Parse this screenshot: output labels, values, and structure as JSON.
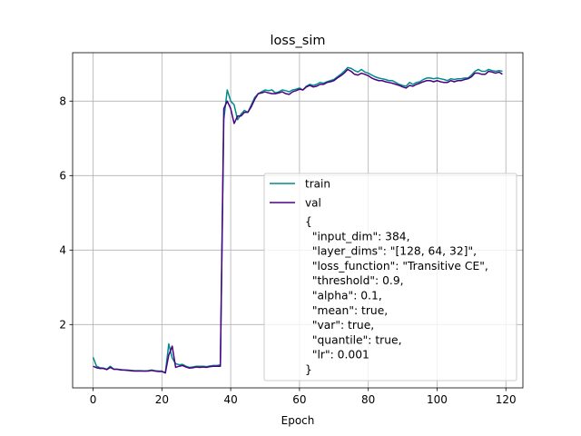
{
  "chart_data": {
    "type": "line",
    "title": "loss_sim",
    "xlabel": "Epoch",
    "ylabel": "",
    "xlim": [
      -5.95,
      124.95
    ],
    "ylim": [
      0.3,
      9.3
    ],
    "xticks": [
      0,
      20,
      40,
      60,
      80,
      100,
      120
    ],
    "yticks": [
      2,
      4,
      6,
      8
    ],
    "grid": true,
    "legend_position": "lower-right",
    "series": [
      {
        "name": "train",
        "color": "#008b8b",
        "x": [
          0,
          1,
          2,
          3,
          4,
          5,
          6,
          7,
          8,
          9,
          10,
          11,
          12,
          13,
          14,
          15,
          16,
          17,
          18,
          19,
          20,
          21,
          22,
          23,
          24,
          25,
          26,
          27,
          28,
          29,
          30,
          31,
          32,
          33,
          34,
          35,
          36,
          37,
          38,
          39,
          40,
          41,
          42,
          43,
          44,
          45,
          46,
          47,
          48,
          49,
          50,
          51,
          52,
          53,
          54,
          55,
          56,
          57,
          58,
          59,
          60,
          61,
          62,
          63,
          64,
          65,
          66,
          67,
          68,
          69,
          70,
          71,
          72,
          73,
          74,
          75,
          76,
          77,
          78,
          79,
          80,
          81,
          82,
          83,
          84,
          85,
          86,
          87,
          88,
          89,
          90,
          91,
          92,
          93,
          94,
          95,
          96,
          97,
          98,
          99,
          100,
          101,
          102,
          103,
          104,
          105,
          106,
          107,
          108,
          109,
          110,
          111,
          112,
          113,
          114,
          115,
          116,
          117,
          118,
          119
        ],
        "values": [
          1.12,
          0.88,
          0.84,
          0.83,
          0.8,
          0.88,
          0.8,
          0.8,
          0.79,
          0.78,
          0.78,
          0.77,
          0.76,
          0.76,
          0.76,
          0.75,
          0.76,
          0.78,
          0.76,
          0.75,
          0.75,
          0.7,
          1.48,
          1.1,
          0.95,
          0.92,
          0.93,
          0.88,
          0.85,
          0.86,
          0.88,
          0.88,
          0.88,
          0.87,
          0.89,
          0.9,
          0.9,
          0.92,
          7.5,
          8.3,
          8.0,
          7.9,
          7.5,
          7.65,
          7.75,
          7.7,
          7.9,
          8.1,
          8.2,
          8.25,
          8.3,
          8.28,
          8.3,
          8.22,
          8.25,
          8.3,
          8.28,
          8.25,
          8.3,
          8.32,
          8.35,
          8.3,
          8.4,
          8.45,
          8.42,
          8.45,
          8.5,
          8.48,
          8.52,
          8.55,
          8.58,
          8.65,
          8.72,
          8.8,
          8.9,
          8.88,
          8.82,
          8.78,
          8.85,
          8.78,
          8.75,
          8.7,
          8.65,
          8.62,
          8.6,
          8.58,
          8.55,
          8.55,
          8.5,
          8.45,
          8.42,
          8.4,
          8.5,
          8.45,
          8.5,
          8.52,
          8.58,
          8.62,
          8.62,
          8.6,
          8.62,
          8.6,
          8.58,
          8.55,
          8.6,
          8.58,
          8.6,
          8.6,
          8.62,
          8.62,
          8.7,
          8.8,
          8.85,
          8.8,
          8.8,
          8.85,
          8.82,
          8.8,
          8.82,
          8.8
        ]
      },
      {
        "name": "val",
        "color": "#4b0082",
        "x": [
          0,
          1,
          2,
          3,
          4,
          5,
          6,
          7,
          8,
          9,
          10,
          11,
          12,
          13,
          14,
          15,
          16,
          17,
          18,
          19,
          20,
          21,
          22,
          23,
          24,
          25,
          26,
          27,
          28,
          29,
          30,
          31,
          32,
          33,
          34,
          35,
          36,
          37,
          38,
          39,
          40,
          41,
          42,
          43,
          44,
          45,
          46,
          47,
          48,
          49,
          50,
          51,
          52,
          53,
          54,
          55,
          56,
          57,
          58,
          59,
          60,
          61,
          62,
          63,
          64,
          65,
          66,
          67,
          68,
          69,
          70,
          71,
          72,
          73,
          74,
          75,
          76,
          77,
          78,
          79,
          80,
          81,
          82,
          83,
          84,
          85,
          86,
          87,
          88,
          89,
          90,
          91,
          92,
          93,
          94,
          95,
          96,
          97,
          98,
          99,
          100,
          101,
          102,
          103,
          104,
          105,
          106,
          107,
          108,
          109,
          110,
          111,
          112,
          113,
          114,
          115,
          116,
          117,
          118,
          119
        ],
        "values": [
          0.88,
          0.84,
          0.82,
          0.82,
          0.79,
          0.85,
          0.8,
          0.8,
          0.78,
          0.78,
          0.77,
          0.76,
          0.75,
          0.75,
          0.75,
          0.75,
          0.75,
          0.77,
          0.75,
          0.74,
          0.74,
          0.7,
          1.18,
          1.42,
          0.85,
          0.88,
          0.9,
          0.86,
          0.83,
          0.84,
          0.86,
          0.85,
          0.86,
          0.85,
          0.87,
          0.88,
          0.88,
          0.88,
          7.8,
          8.0,
          7.8,
          7.4,
          7.6,
          7.6,
          7.7,
          7.7,
          7.85,
          8.05,
          8.2,
          8.22,
          8.25,
          8.22,
          8.2,
          8.2,
          8.22,
          8.25,
          8.2,
          8.18,
          8.25,
          8.28,
          8.32,
          8.3,
          8.38,
          8.42,
          8.38,
          8.4,
          8.45,
          8.45,
          8.5,
          8.52,
          8.55,
          8.62,
          8.68,
          8.75,
          8.85,
          8.8,
          8.72,
          8.7,
          8.75,
          8.72,
          8.68,
          8.62,
          8.58,
          8.55,
          8.55,
          8.52,
          8.5,
          8.48,
          8.45,
          8.42,
          8.38,
          8.35,
          8.42,
          8.4,
          8.45,
          8.48,
          8.52,
          8.55,
          8.55,
          8.52,
          8.55,
          8.52,
          8.5,
          8.5,
          8.55,
          8.52,
          8.55,
          8.55,
          8.58,
          8.6,
          8.65,
          8.75,
          8.75,
          8.72,
          8.72,
          8.8,
          8.78,
          8.75,
          8.78,
          8.72
        ]
      }
    ]
  },
  "legend": {
    "config_lines": [
      "{",
      "  \"input_dim\": 384,",
      "  \"layer_dims\": \"[128, 64, 32]\",",
      "  \"loss_function\": \"Transitive CE\",",
      "  \"threshold\": 0.9,",
      "  \"alpha\": 0.1,",
      "  \"mean\": true,",
      "  \"var\": true,",
      "  \"quantile\": true,",
      "  \"lr\": 0.001",
      "}"
    ]
  }
}
